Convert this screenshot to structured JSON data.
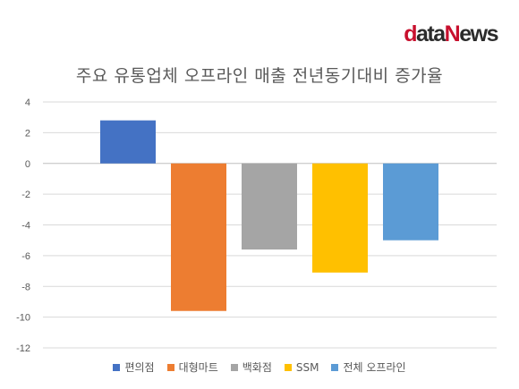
{
  "logo": {
    "first": "d",
    "middle": "ata",
    "n": "N",
    "last": "ews"
  },
  "chart_data": {
    "type": "bar",
    "title": "주요 유통업체 오프라인 매출 전년동기대비 증가율",
    "xlabel": "",
    "ylabel": "",
    "ylim": [
      -12,
      4
    ],
    "yticks": [
      4,
      2,
      0,
      -2,
      -4,
      -6,
      -8,
      -10,
      -12
    ],
    "grid": true,
    "legend_position": "bottom",
    "categories": [
      "편의점",
      "대형마트",
      "백화점",
      "SSM",
      "전체 오프라인"
    ],
    "values": [
      2.8,
      -9.6,
      -5.6,
      -7.1,
      -5.0
    ],
    "colors": [
      "#4472c4",
      "#ed7d31",
      "#a5a5a5",
      "#ffc000",
      "#5b9bd5"
    ]
  }
}
